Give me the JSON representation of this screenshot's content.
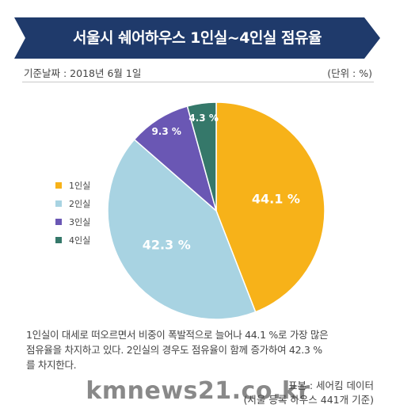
{
  "header": {
    "title": "서울시 쉐어하우스 1인실~4인실 점유율",
    "date_label": "기준날짜 : 2018년 6월 1일",
    "unit_label": "(단위 : %)"
  },
  "chart_data": {
    "type": "pie",
    "title": "서울시 쉐어하우스 1인실~4인실 점유율",
    "categories": [
      "1인실",
      "2인실",
      "3인실",
      "4인실"
    ],
    "values": [
      44.1,
      42.3,
      9.3,
      4.3
    ],
    "data_labels": [
      "44.1 %",
      "42.3 %",
      "9.3 %",
      "4.3 %"
    ],
    "colors": [
      "#f7b219",
      "#a8d3e2",
      "#6a57b4",
      "#35786a"
    ],
    "legend_position": "left"
  },
  "description": {
    "lines": [
      "1인실이 대세로 떠오르면서 비중이 폭발적으로 늘어나 44.1 %로 가장 많은",
      "점유율을 차지하고 있다. 2인실의 경우도 점유율이 함께 증가하여 42.3 %",
      "를 차지한다."
    ]
  },
  "source": {
    "line1": "표본 : 세어킴 데이터",
    "line2": "(서울 등록 하우스 441개 기준)"
  },
  "watermark": "kmnews21.co.kr",
  "banner_color": "#1f3a6b"
}
